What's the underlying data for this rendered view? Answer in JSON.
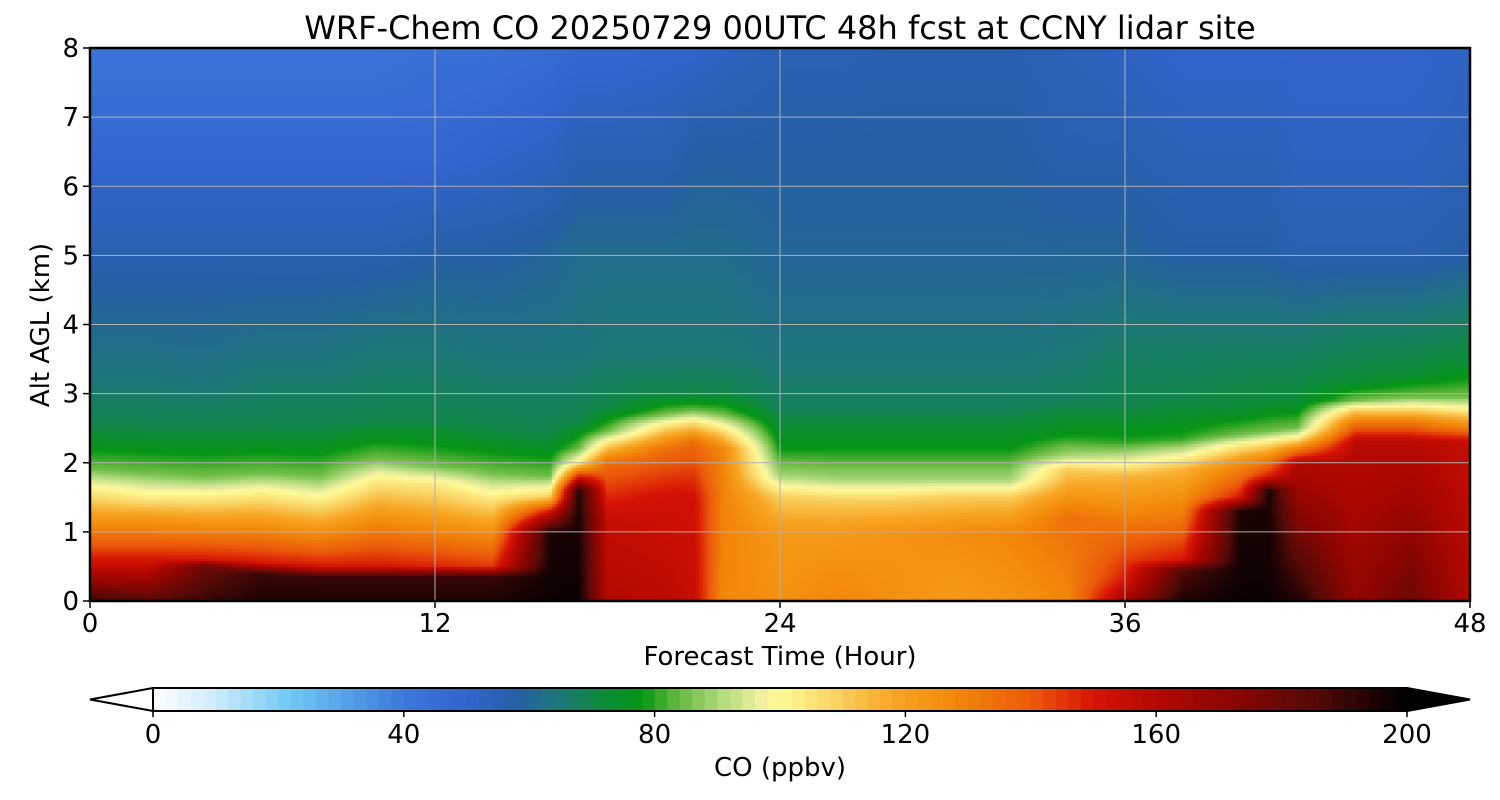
{
  "chart_data": {
    "type": "heatmap",
    "title": "WRF-Chem CO  20250729 00UTC 48h fcst at CCNY lidar site",
    "xlabel": "Forecast Time (Hour)",
    "ylabel": "Alt AGL (km)",
    "xlim": [
      0,
      48
    ],
    "ylim": [
      0,
      8
    ],
    "xticks": [
      0,
      12,
      24,
      36,
      48
    ],
    "yticks": [
      0,
      1,
      2,
      3,
      4,
      5,
      6,
      7,
      8
    ],
    "grid": true,
    "colorbar": {
      "label": "CO  (ppbv)",
      "range": [
        0,
        200
      ],
      "ticks": [
        0,
        40,
        80,
        120,
        160,
        200
      ],
      "extend": "both",
      "orientation": "horizontal",
      "placement": "bottom"
    },
    "profile_x_hours": [
      0,
      2,
      4,
      6,
      8,
      10,
      12,
      14,
      16,
      17,
      18,
      20,
      21,
      22,
      24,
      26,
      28,
      30,
      32,
      34,
      36,
      38,
      40,
      41,
      42,
      44,
      46,
      48
    ],
    "profile_points_km_ppbv": [
      [
        [
          0,
          190
        ],
        [
          0.5,
          155
        ],
        [
          1.2,
          122
        ],
        [
          1.6,
          103
        ],
        [
          1.9,
          85
        ],
        [
          2.5,
          70
        ],
        [
          3.3,
          64
        ],
        [
          5,
          56
        ],
        [
          6.5,
          48
        ],
        [
          8,
          42
        ]
      ],
      [
        [
          0,
          185
        ],
        [
          0.5,
          155
        ],
        [
          1.2,
          122
        ],
        [
          1.5,
          103
        ],
        [
          1.85,
          85
        ],
        [
          2.5,
          70
        ],
        [
          3.3,
          64
        ],
        [
          5,
          56
        ],
        [
          6.5,
          48
        ],
        [
          8,
          42
        ]
      ],
      [
        [
          0,
          190
        ],
        [
          0.5,
          180
        ],
        [
          0.6,
          150
        ],
        [
          1.2,
          120
        ],
        [
          1.5,
          103
        ],
        [
          1.8,
          85
        ],
        [
          2.5,
          70
        ],
        [
          3.2,
          64
        ],
        [
          5,
          56
        ],
        [
          6.5,
          48
        ],
        [
          8,
          42
        ]
      ],
      [
        [
          0,
          195
        ],
        [
          0.4,
          190
        ],
        [
          0.55,
          150
        ],
        [
          1.2,
          120
        ],
        [
          1.55,
          103
        ],
        [
          1.85,
          85
        ],
        [
          2.5,
          70
        ],
        [
          3.5,
          64
        ],
        [
          5,
          56
        ],
        [
          6.5,
          48
        ],
        [
          8,
          42
        ]
      ],
      [
        [
          0,
          195
        ],
        [
          0.35,
          190
        ],
        [
          0.5,
          150
        ],
        [
          1.0,
          125
        ],
        [
          1.45,
          103
        ],
        [
          1.8,
          85
        ],
        [
          2.5,
          70
        ],
        [
          3.5,
          64
        ],
        [
          5,
          56
        ],
        [
          6.5,
          48
        ],
        [
          8,
          42
        ]
      ],
      [
        [
          0,
          195
        ],
        [
          0.35,
          190
        ],
        [
          0.5,
          150
        ],
        [
          1.2,
          125
        ],
        [
          1.75,
          103
        ],
        [
          2.05,
          85
        ],
        [
          2.6,
          70
        ],
        [
          3.8,
          64
        ],
        [
          5,
          56
        ],
        [
          6.5,
          48
        ],
        [
          8,
          42
        ]
      ],
      [
        [
          0,
          195
        ],
        [
          0.35,
          190
        ],
        [
          0.5,
          148
        ],
        [
          1.1,
          125
        ],
        [
          1.7,
          103
        ],
        [
          1.95,
          85
        ],
        [
          2.6,
          70
        ],
        [
          3.8,
          64
        ],
        [
          5,
          58
        ],
        [
          6.5,
          48
        ],
        [
          8,
          44
        ]
      ],
      [
        [
          0,
          195
        ],
        [
          0.35,
          190
        ],
        [
          0.5,
          145
        ],
        [
          1.0,
          125
        ],
        [
          1.5,
          103
        ],
        [
          1.85,
          85
        ],
        [
          2.5,
          70
        ],
        [
          3.6,
          64
        ],
        [
          5,
          58
        ],
        [
          6.5,
          50
        ],
        [
          8,
          44
        ]
      ],
      [
        [
          0,
          198
        ],
        [
          1.0,
          195
        ],
        [
          1.3,
          150
        ],
        [
          1.5,
          110
        ],
        [
          1.8,
          85
        ],
        [
          2.4,
          70
        ],
        [
          3.6,
          64
        ],
        [
          5,
          60
        ],
        [
          6.5,
          52
        ],
        [
          8,
          46
        ]
      ],
      [
        [
          0,
          198
        ],
        [
          1.6,
          195
        ],
        [
          1.8,
          150
        ],
        [
          2.0,
          103
        ],
        [
          2.2,
          85
        ],
        [
          2.6,
          70
        ],
        [
          3.6,
          64
        ],
        [
          5,
          62
        ],
        [
          6.5,
          55
        ],
        [
          8,
          48
        ]
      ],
      [
        [
          0,
          160
        ],
        [
          1.2,
          155
        ],
        [
          2.0,
          135
        ],
        [
          2.3,
          103
        ],
        [
          2.45,
          85
        ],
        [
          2.8,
          70
        ],
        [
          3.6,
          65
        ],
        [
          5,
          62
        ],
        [
          6.5,
          55
        ],
        [
          8,
          48
        ]
      ],
      [
        [
          0,
          158
        ],
        [
          1.5,
          152
        ],
        [
          2.2,
          135
        ],
        [
          2.55,
          103
        ],
        [
          2.7,
          85
        ],
        [
          3.0,
          70
        ],
        [
          3.6,
          65
        ],
        [
          5,
          62
        ],
        [
          6.5,
          55
        ],
        [
          8,
          50
        ]
      ],
      [
        [
          0,
          155
        ],
        [
          1.5,
          152
        ],
        [
          2.3,
          135
        ],
        [
          2.6,
          103
        ],
        [
          2.75,
          85
        ],
        [
          3.0,
          70
        ],
        [
          3.6,
          65
        ],
        [
          5,
          62
        ],
        [
          6.5,
          58
        ],
        [
          8,
          50
        ]
      ],
      [
        [
          0,
          128
        ],
        [
          1.5,
          130
        ],
        [
          2.2,
          128
        ],
        [
          2.5,
          103
        ],
        [
          2.7,
          85
        ],
        [
          3.0,
          70
        ],
        [
          3.6,
          65
        ],
        [
          5,
          62
        ],
        [
          6.5,
          58
        ],
        [
          8,
          52
        ]
      ],
      [
        [
          0,
          125
        ],
        [
          1.0,
          122
        ],
        [
          1.5,
          110
        ],
        [
          1.8,
          90
        ],
        [
          2.2,
          78
        ],
        [
          2.8,
          68
        ],
        [
          3.6,
          64
        ],
        [
          5,
          60
        ],
        [
          6.5,
          58
        ],
        [
          8,
          55
        ]
      ],
      [
        [
          0,
          128
        ],
        [
          1.0,
          122
        ],
        [
          1.45,
          110
        ],
        [
          1.75,
          90
        ],
        [
          2.2,
          78
        ],
        [
          2.8,
          68
        ],
        [
          3.6,
          64
        ],
        [
          5,
          60
        ],
        [
          6.5,
          58
        ],
        [
          8,
          55
        ]
      ],
      [
        [
          0,
          125
        ],
        [
          1.0,
          124
        ],
        [
          1.45,
          110
        ],
        [
          1.75,
          90
        ],
        [
          2.2,
          78
        ],
        [
          2.8,
          68
        ],
        [
          3.6,
          64
        ],
        [
          5,
          60
        ],
        [
          6.5,
          58
        ],
        [
          8,
          56
        ]
      ],
      [
        [
          0,
          122
        ],
        [
          1.0,
          126
        ],
        [
          1.5,
          110
        ],
        [
          1.75,
          90
        ],
        [
          2.2,
          78
        ],
        [
          2.8,
          68
        ],
        [
          3.6,
          64
        ],
        [
          5,
          60
        ],
        [
          6.5,
          58
        ],
        [
          8,
          56
        ]
      ],
      [
        [
          0,
          124
        ],
        [
          1.0,
          128
        ],
        [
          1.5,
          110
        ],
        [
          1.75,
          90
        ],
        [
          2.2,
          78
        ],
        [
          2.8,
          68
        ],
        [
          3.6,
          64
        ],
        [
          5,
          60
        ],
        [
          6.5,
          58
        ],
        [
          8,
          56
        ]
      ],
      [
        [
          0,
          128
        ],
        [
          1.2,
          134
        ],
        [
          1.9,
          110
        ],
        [
          2.1,
          90
        ],
        [
          2.4,
          78
        ],
        [
          2.9,
          68
        ],
        [
          3.8,
          64
        ],
        [
          5,
          60
        ],
        [
          6.5,
          56
        ],
        [
          8,
          54
        ]
      ],
      [
        [
          0,
          165
        ],
        [
          0.3,
          150
        ],
        [
          1.0,
          135
        ],
        [
          1.8,
          115
        ],
        [
          2.05,
          95
        ],
        [
          2.3,
          80
        ],
        [
          2.8,
          70
        ],
        [
          3.8,
          66
        ],
        [
          5,
          60
        ],
        [
          6.5,
          56
        ],
        [
          8,
          52
        ]
      ],
      [
        [
          0,
          195
        ],
        [
          0.45,
          185
        ],
        [
          0.6,
          150
        ],
        [
          1.2,
          132
        ],
        [
          1.9,
          115
        ],
        [
          2.15,
          95
        ],
        [
          2.35,
          80
        ],
        [
          2.9,
          70
        ],
        [
          3.8,
          66
        ],
        [
          5,
          58
        ],
        [
          6.5,
          54
        ],
        [
          8,
          50
        ]
      ],
      [
        [
          0,
          198
        ],
        [
          1.3,
          195
        ],
        [
          1.5,
          150
        ],
        [
          2.0,
          125
        ],
        [
          2.25,
          103
        ],
        [
          2.4,
          85
        ],
        [
          2.8,
          72
        ],
        [
          3.8,
          66
        ],
        [
          5,
          58
        ],
        [
          6.5,
          54
        ],
        [
          8,
          50
        ]
      ],
      [
        [
          0,
          198
        ],
        [
          1.6,
          195
        ],
        [
          1.8,
          150
        ],
        [
          2.1,
          125
        ],
        [
          2.3,
          103
        ],
        [
          2.45,
          85
        ],
        [
          2.9,
          72
        ],
        [
          3.8,
          66
        ],
        [
          5,
          58
        ],
        [
          6.5,
          54
        ],
        [
          8,
          50
        ]
      ],
      [
        [
          0,
          195
        ],
        [
          2.0,
          160
        ],
        [
          2.2,
          130
        ],
        [
          2.35,
          103
        ],
        [
          2.5,
          85
        ],
        [
          2.9,
          72
        ],
        [
          3.8,
          66
        ],
        [
          5,
          56
        ],
        [
          6.5,
          52
        ],
        [
          8,
          50
        ]
      ],
      [
        [
          0,
          170
        ],
        [
          2.3,
          158
        ],
        [
          2.6,
          130
        ],
        [
          2.8,
          103
        ],
        [
          2.9,
          85
        ],
        [
          3.2,
          72
        ],
        [
          4.0,
          66
        ],
        [
          5,
          56
        ],
        [
          6.5,
          52
        ],
        [
          8,
          50
        ]
      ],
      [
        [
          0,
          180
        ],
        [
          2.3,
          158
        ],
        [
          2.6,
          130
        ],
        [
          2.8,
          103
        ],
        [
          2.95,
          85
        ],
        [
          3.3,
          72
        ],
        [
          4.0,
          66
        ],
        [
          5,
          56
        ],
        [
          6.5,
          52
        ],
        [
          8,
          50
        ]
      ],
      [
        [
          0,
          160
        ],
        [
          2.3,
          155
        ],
        [
          2.5,
          130
        ],
        [
          2.75,
          103
        ],
        [
          2.95,
          85
        ],
        [
          3.5,
          72
        ],
        [
          4.2,
          66
        ],
        [
          5,
          58
        ],
        [
          6.5,
          54
        ],
        [
          8,
          52
        ]
      ]
    ]
  }
}
